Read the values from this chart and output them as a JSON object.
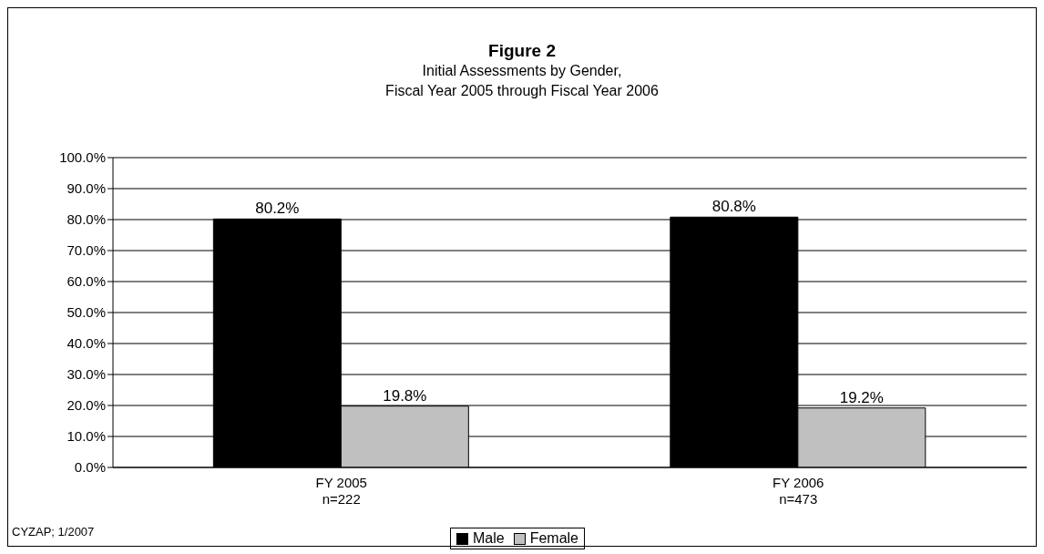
{
  "chart_data": {
    "type": "bar",
    "title": "Figure 2",
    "subtitle": "Initial Assessments by Gender,\nFiscal Year 2005 through Fiscal Year 2006",
    "categories": [
      "FY 2005\nn=222",
      "FY 2006\nn=473"
    ],
    "series": [
      {
        "name": "Male",
        "color": "#000000",
        "values": [
          80.2,
          80.8
        ],
        "value_labels": [
          "80.2%",
          "80.8%"
        ]
      },
      {
        "name": "Female",
        "color": "#c0c0c0",
        "values": [
          19.8,
          19.2
        ],
        "value_labels": [
          "19.8%",
          "19.2%"
        ]
      }
    ],
    "ylim": [
      0,
      100
    ],
    "yticks": [
      {
        "value": 0,
        "label": "0.0%"
      },
      {
        "value": 10,
        "label": "10.0%"
      },
      {
        "value": 20,
        "label": "20.0%"
      },
      {
        "value": 30,
        "label": "30.0%"
      },
      {
        "value": 40,
        "label": "40.0%"
      },
      {
        "value": 50,
        "label": "50.0%"
      },
      {
        "value": 60,
        "label": "60.0%"
      },
      {
        "value": 70,
        "label": "70.0%"
      },
      {
        "value": 80,
        "label": "80.0%"
      },
      {
        "value": 90,
        "label": "90.0%"
      },
      {
        "value": 100,
        "label": "100.0%"
      }
    ],
    "grid": "y",
    "legend": "bottom",
    "annotations": [
      "CYZAP; 1/2007"
    ]
  }
}
